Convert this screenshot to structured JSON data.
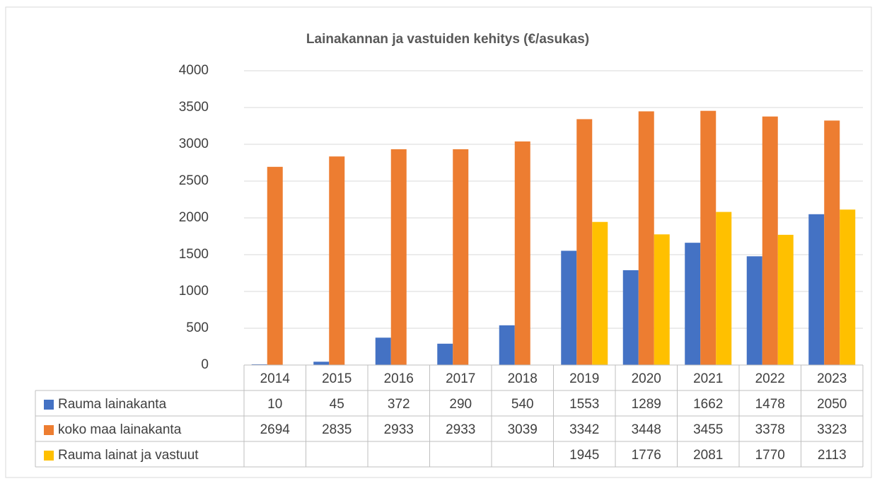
{
  "chart_data": {
    "type": "bar",
    "title": "Lainakannan ja vastuiden kehitys (€/asukas)",
    "categories": [
      "2014",
      "2015",
      "2016",
      "2017",
      "2018",
      "2019",
      "2020",
      "2021",
      "2022",
      "2023"
    ],
    "series": [
      {
        "name": "Rauma lainakanta",
        "color": "#4472c4",
        "values": [
          10,
          45,
          372,
          290,
          540,
          1553,
          1289,
          1662,
          1478,
          2050
        ]
      },
      {
        "name": "koko maa lainakanta",
        "color": "#ed7d31",
        "values": [
          2694,
          2835,
          2933,
          2933,
          3039,
          3342,
          3448,
          3455,
          3378,
          3323
        ]
      },
      {
        "name": "Rauma lainat ja vastuut",
        "color": "#ffc000",
        "values": [
          null,
          null,
          null,
          null,
          null,
          1945,
          1776,
          2081,
          1770,
          2113
        ]
      }
    ],
    "ylim": [
      0,
      4000
    ],
    "yticks": [
      0,
      500,
      1000,
      1500,
      2000,
      2500,
      3000,
      3500,
      4000
    ],
    "grid": true
  }
}
